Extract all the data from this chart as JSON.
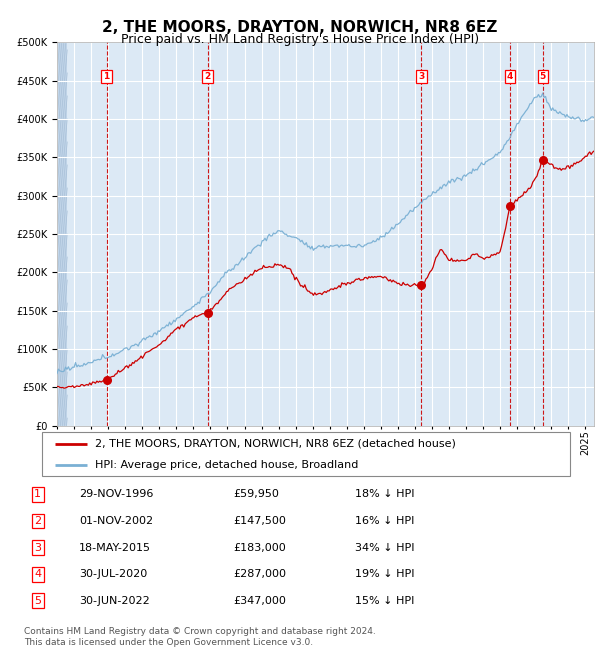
{
  "title": "2, THE MOORS, DRAYTON, NORWICH, NR8 6EZ",
  "subtitle": "Price paid vs. HM Land Registry's House Price Index (HPI)",
  "ylim": [
    0,
    500000
  ],
  "yticks": [
    0,
    50000,
    100000,
    150000,
    200000,
    250000,
    300000,
    350000,
    400000,
    450000,
    500000
  ],
  "ytick_labels": [
    "£0",
    "£50K",
    "£100K",
    "£150K",
    "£200K",
    "£250K",
    "£300K",
    "£350K",
    "£400K",
    "£450K",
    "£500K"
  ],
  "xlim_start": 1994.0,
  "xlim_end": 2025.5,
  "bg_color": "#dce9f5",
  "grid_color": "#ffffff",
  "red_line_color": "#cc0000",
  "blue_line_color": "#7ab0d4",
  "sale_points": [
    {
      "year": 1996.91,
      "price": 59950,
      "label": "1"
    },
    {
      "year": 2002.83,
      "price": 147500,
      "label": "2"
    },
    {
      "year": 2015.38,
      "price": 183000,
      "label": "3"
    },
    {
      "year": 2020.58,
      "price": 287000,
      "label": "4"
    },
    {
      "year": 2022.49,
      "price": 347000,
      "label": "5"
    }
  ],
  "vline_years": [
    1996.91,
    2002.83,
    2015.38,
    2020.58,
    2022.49
  ],
  "legend_entries": [
    {
      "label": "2, THE MOORS, DRAYTON, NORWICH, NR8 6EZ (detached house)",
      "color": "#cc0000"
    },
    {
      "label": "HPI: Average price, detached house, Broadland",
      "color": "#7ab0d4"
    }
  ],
  "table_rows": [
    {
      "num": "1",
      "date": "29-NOV-1996",
      "price": "£59,950",
      "hpi": "18% ↓ HPI"
    },
    {
      "num": "2",
      "date": "01-NOV-2002",
      "price": "£147,500",
      "hpi": "16% ↓ HPI"
    },
    {
      "num": "3",
      "date": "18-MAY-2015",
      "price": "£183,000",
      "hpi": "34% ↓ HPI"
    },
    {
      "num": "4",
      "date": "30-JUL-2020",
      "price": "£287,000",
      "hpi": "19% ↓ HPI"
    },
    {
      "num": "5",
      "date": "30-JUN-2022",
      "price": "£347,000",
      "hpi": "15% ↓ HPI"
    }
  ],
  "footnote": "Contains HM Land Registry data © Crown copyright and database right 2024.\nThis data is licensed under the Open Government Licence v3.0.",
  "title_fontsize": 11,
  "subtitle_fontsize": 9,
  "tick_fontsize": 7,
  "legend_fontsize": 8,
  "table_fontsize": 8,
  "footnote_fontsize": 6.5
}
